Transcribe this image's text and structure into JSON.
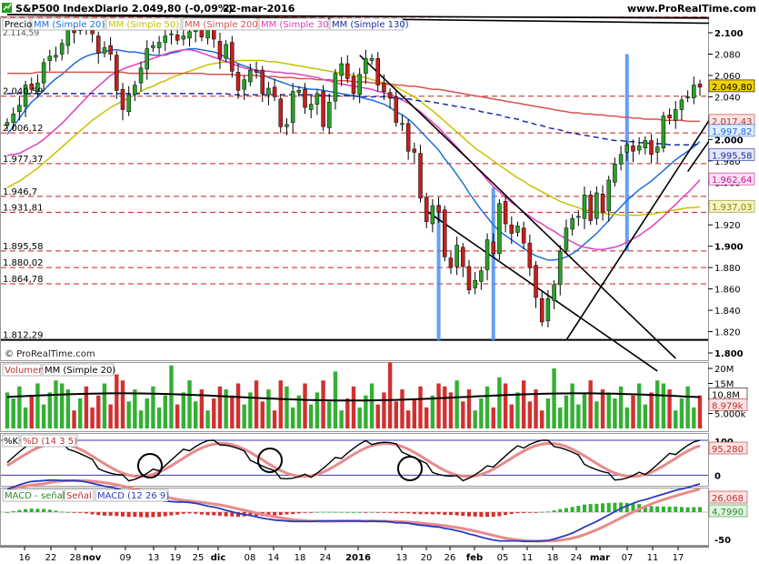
{
  "header": {
    "instrument": "S&P500 Index",
    "period": "Diario",
    "quote": "2.049,80 (-0,09%)",
    "date": "22-mar-2016",
    "site": "www.ProRealTime.com",
    "copyright": "© ProRealTime.com"
  },
  "price_legend": {
    "label": "Precio",
    "items": [
      {
        "label": "MM (Simple 20)",
        "color": "#1e6fd9"
      },
      {
        "label": "MM (Simple 50)",
        "color": "#c8c200"
      },
      {
        "label": "MM (Simple 200)",
        "color": "#d9534f"
      },
      {
        "label": "MM (Simple 30)",
        "color": "#e040c0"
      },
      {
        "label": "MM (Simple 130)",
        "color": "#1d2ea8"
      }
    ]
  },
  "price_levels_left": [
    "2.040,59",
    "2.006,12",
    "1.977,37",
    "1.946,7",
    "1.931,81",
    "1.895,58",
    "1.880,02",
    "1.864,78",
    "1.812,29"
  ],
  "top_cut_label": "2.114,59",
  "price_axis_ticks": [
    "2.100",
    "2.080",
    "2.060",
    "2.040",
    "2.020",
    "2.000",
    "1.980",
    "1.960",
    "1.940",
    "1.920",
    "1.900",
    "1.880",
    "1.860",
    "1.840",
    "1.820",
    "1.800"
  ],
  "price_badges": [
    {
      "text": "2.049,80",
      "bg": "#f2d200",
      "fg": "#000"
    },
    {
      "text": "2.017,43",
      "bg": "#fbe3e3",
      "fg": "#c03030"
    },
    {
      "text": "1.997,82",
      "bg": "#e2ecfb",
      "fg": "#1e6fd9"
    },
    {
      "text": "1.995,58",
      "bg": "#e4e6f7",
      "fg": "#1d2ea8"
    },
    {
      "text": "1.962,64",
      "bg": "#f9e0f3",
      "fg": "#c0209a"
    },
    {
      "text": "1.937,03",
      "bg": "#f6f5c8",
      "fg": "#8a8600"
    }
  ],
  "volume": {
    "label": "Volumen",
    "ma_label": "MM (Simple 20)",
    "axis_ticks": [
      "20M",
      "15M",
      "10M",
      "5.000k"
    ],
    "badges": [
      {
        "text": "10,8M",
        "bg": "#ffffff",
        "fg": "#000"
      },
      {
        "text": "8.979k",
        "bg": "#fbe3e3",
        "fg": "#c03030"
      }
    ]
  },
  "stochastic": {
    "label_k": "%K",
    "label_d": "%D (14 3 5)",
    "axis_ticks": [
      "100",
      "0"
    ],
    "badge": {
      "text": "95,280",
      "bg": "#fbe3e3",
      "fg": "#c03030"
    }
  },
  "macd": {
    "label_hist": "MACD - señal",
    "label_signal": "Señal",
    "label_macd": "MACD (12 26 9)",
    "axis_ticks": [
      "-50"
    ],
    "badges": [
      {
        "text": "26,068",
        "bg": "#fbe3e3",
        "fg": "#c03030"
      },
      {
        "text": "4,7990",
        "bg": "#e3f4e3",
        "fg": "#2a8a2a"
      }
    ]
  },
  "x_axis": {
    "labels": [
      {
        "text": "16",
        "bold": false
      },
      {
        "text": "22",
        "bold": false
      },
      {
        "text": "28",
        "bold": false
      },
      {
        "text": "nov",
        "bold": true
      },
      {
        "text": "09",
        "bold": false
      },
      {
        "text": "13",
        "bold": false
      },
      {
        "text": "19",
        "bold": false
      },
      {
        "text": "25",
        "bold": false
      },
      {
        "text": "dic",
        "bold": true
      },
      {
        "text": "08",
        "bold": false
      },
      {
        "text": "14",
        "bold": false
      },
      {
        "text": "18",
        "bold": false
      },
      {
        "text": "24",
        "bold": false
      },
      {
        "text": "2016",
        "bold": true
      },
      {
        "text": "13",
        "bold": false
      },
      {
        "text": "20",
        "bold": false
      },
      {
        "text": "26",
        "bold": false
      },
      {
        "text": "feb",
        "bold": true
      },
      {
        "text": "05",
        "bold": false
      },
      {
        "text": "11",
        "bold": false
      },
      {
        "text": "18",
        "bold": false
      },
      {
        "text": "24",
        "bold": false
      },
      {
        "text": "mar",
        "bold": true
      },
      {
        "text": "07",
        "bold": false
      },
      {
        "text": "11",
        "bold": false
      },
      {
        "text": "17",
        "bold": false
      }
    ]
  },
  "chart_data": {
    "type": "candlestick",
    "title": "S&P500 Index Diario",
    "ylim": [
      1800,
      2120
    ],
    "closes": [
      2016,
      2024,
      2032,
      2051,
      2047,
      2053,
      2072,
      2078,
      2079,
      2090,
      2104,
      2100,
      2109,
      2104,
      2099,
      2081,
      2086,
      2080,
      2046,
      2028,
      2042,
      2051,
      2067,
      2085,
      2088,
      2091,
      2097,
      2099,
      2093,
      2097,
      2101,
      2103,
      2096,
      2105,
      2094,
      2076,
      2089,
      2064,
      2046,
      2056,
      2065,
      2063,
      2043,
      2048,
      2040,
      2012,
      2014,
      2045,
      2046,
      2030,
      2033,
      2043,
      2012,
      2035,
      2062,
      2071,
      2057,
      2043,
      2061,
      2076,
      2076,
      2051,
      2045,
      2039,
      2016,
      2015,
      1989,
      1988,
      1945,
      1923,
      1938,
      1932,
      1890,
      1880,
      1901,
      1881,
      1859,
      1868,
      1877,
      1906,
      1893,
      1940,
      1921,
      1912,
      1919,
      1903,
      1880,
      1852,
      1829,
      1851,
      1864,
      1895,
      1917,
      1926,
      1928,
      1948,
      1924,
      1950,
      1932,
      1962,
      1977,
      1986,
      1995,
      1989,
      1994,
      1999,
      1986,
      1993,
      2022,
      2020,
      2028,
      2037,
      2040,
      2051,
      2049
    ],
    "series": [
      {
        "name": "MM (Simple 20)",
        "values": [
          2005,
          2012,
          2020,
          2028,
          2035,
          2040,
          2046,
          2052,
          2057,
          2061,
          2066,
          2071,
          2075,
          2078,
          2080,
          2081,
          2082,
          2084,
          2084,
          2083,
          2082,
          2082,
          2081,
          2080,
          2079,
          2079,
          2079,
          2081,
          2082,
          2084,
          2085,
          2085,
          2084,
          2083,
          2082,
          2080,
          2077,
          2074,
          2071,
          2069,
          2067,
          2064,
          2061,
          2058,
          2056,
          2054,
          2052,
          2050,
          2049,
          2048,
          2047,
          2047,
          2046,
          2045,
          2044,
          2043,
          2042,
          2041,
          2040,
          2038,
          2037,
          2035,
          2033,
          2030,
          2026,
          2023,
          2019,
          2014,
          2008,
          2002,
          1996,
          1990,
          1982,
          1975,
          1967,
          1959,
          1950,
          1942,
          1934,
          1927,
          1920,
          1914,
          1910,
          1906,
          1902,
          1898,
          1894,
          1891,
          1889,
          1887,
          1887,
          1888,
          1890,
          1893,
          1897,
          1902,
          1907,
          1912,
          1918,
          1924,
          1931,
          1937,
          1943,
          1948,
          1953,
          1957,
          1961,
          1966,
          1971,
          1976,
          1981,
          1985,
          1989,
          1993,
          1998
        ]
      },
      {
        "name": "MM (Simple 50)",
        "values": [
          1955,
          1958,
          1961,
          1965,
          1969,
          1973,
          1978,
          1983,
          1988,
          1993,
          1998,
          2003,
          2008,
          2013,
          2018,
          2022,
          2026,
          2030,
          2033,
          2036,
          2039,
          2042,
          2045,
          2048,
          2050,
          2053,
          2055,
          2058,
          2060,
          2062,
          2064,
          2066,
          2068,
          2070,
          2071,
          2072,
          2073,
          2073,
          2074,
          2074,
          2074,
          2074,
          2074,
          2073,
          2073,
          2072,
          2071,
          2070,
          2069,
          2068,
          2067,
          2066,
          2065,
          2064,
          2063,
          2062,
          2061,
          2060,
          2059,
          2058,
          2056,
          2055,
          2053,
          2051,
          2049,
          2046,
          2043,
          2040,
          2036,
          2031,
          2027,
          2022,
          2017,
          2012,
          2007,
          2002,
          1997,
          1992,
          1988,
          1984,
          1980,
          1976,
          1972,
          1968,
          1964,
          1961,
          1957,
          1954,
          1951,
          1948,
          1945,
          1942,
          1940,
          1938,
          1936,
          1934,
          1933,
          1932,
          1931,
          1930,
          1930,
          1929,
          1929,
          1929,
          1929,
          1930,
          1930,
          1931,
          1932,
          1933,
          1934,
          1935,
          1936,
          1936,
          1937
        ]
      },
      {
        "name": "MM (Simple 200)",
        "values": [
          2062,
          2062,
          2062,
          2062,
          2062,
          2063,
          2063,
          2063,
          2063,
          2063,
          2063,
          2063,
          2063,
          2063,
          2063,
          2063,
          2063,
          2063,
          2063,
          2063,
          2062,
          2062,
          2062,
          2062,
          2062,
          2062,
          2062,
          2062,
          2062,
          2062,
          2062,
          2062,
          2062,
          2061,
          2061,
          2061,
          2061,
          2061,
          2060,
          2060,
          2060,
          2060,
          2059,
          2059,
          2059,
          2058,
          2058,
          2058,
          2057,
          2057,
          2057,
          2056,
          2056,
          2056,
          2055,
          2055,
          2055,
          2054,
          2054,
          2054,
          2053,
          2053,
          2052,
          2052,
          2051,
          2051,
          2050,
          2050,
          2049,
          2048,
          2047,
          2047,
          2046,
          2045,
          2044,
          2043,
          2042,
          2041,
          2040,
          2039,
          2038,
          2037,
          2036,
          2035,
          2034,
          2033,
          2032,
          2031,
          2030,
          2029,
          2028,
          2027,
          2026,
          2025,
          2025,
          2024,
          2024,
          2023,
          2023,
          2022,
          2022,
          2021,
          2021,
          2020,
          2020,
          2019,
          2019,
          2019,
          2018,
          2018,
          2018,
          2018,
          2017,
          2017,
          2017
        ]
      },
      {
        "name": "MM (Simple 30)",
        "values": [
          1985,
          1986,
          1987,
          1990,
          1993,
          1996,
          2000,
          2005,
          2010,
          2015,
          2021,
          2027,
          2033,
          2039,
          2045,
          2050,
          2055,
          2060,
          2063,
          2066,
          2068,
          2070,
          2072,
          2074,
          2076,
          2078,
          2080,
          2082,
          2083,
          2084,
          2084,
          2083,
          2081,
          2079,
          2077,
          2075,
          2073,
          2071,
          2069,
          2067,
          2066,
          2065,
          2064,
          2064,
          2063,
          2063,
          2062,
          2062,
          2061,
          2060,
          2059,
          2058,
          2056,
          2055,
          2053,
          2052,
          2051,
          2050,
          2049,
          2048,
          2047,
          2045,
          2044,
          2042,
          2040,
          2037,
          2034,
          2030,
          2026,
          2021,
          2016,
          2011,
          2005,
          1999,
          1993,
          1987,
          1981,
          1975,
          1969,
          1962,
          1956,
          1951,
          1946,
          1941,
          1937,
          1932,
          1928,
          1924,
          1921,
          1917,
          1914,
          1910,
          1907,
          1904,
          1901,
          1899,
          1898,
          1897,
          1897,
          1898,
          1899,
          1901,
          1904,
          1907,
          1910,
          1914,
          1918,
          1923,
          1928,
          1934,
          1939,
          1945,
          1950,
          1956,
          1962
        ]
      },
      {
        "name": "MM (Simple 130)",
        "values": [
          2043,
          2043,
          2043,
          2043,
          2043,
          2043,
          2043,
          2043,
          2043,
          2043,
          2043,
          2043,
          2043,
          2043,
          2043,
          2043,
          2043,
          2043,
          2043,
          2043,
          2043,
          2043,
          2043,
          2043,
          2043,
          2043,
          2043,
          2043,
          2043,
          2043,
          2043,
          2043,
          2043,
          2043,
          2043,
          2043,
          2043,
          2042,
          2042,
          2042,
          2042,
          2042,
          2042,
          2042,
          2042,
          2042,
          2042,
          2042,
          2042,
          2042,
          2042,
          2042,
          2041,
          2041,
          2041,
          2041,
          2041,
          2041,
          2040,
          2040,
          2040,
          2040,
          2040,
          2039,
          2039,
          2038,
          2038,
          2037,
          2036,
          2036,
          2035,
          2034,
          2033,
          2032,
          2031,
          2030,
          2029,
          2028,
          2026,
          2025,
          2024,
          2023,
          2021,
          2020,
          2019,
          2017,
          2016,
          2014,
          2013,
          2011,
          2010,
          2009,
          2007,
          2006,
          2005,
          2004,
          2003,
          2002,
          2001,
          2000,
          1999,
          1999,
          1998,
          1998,
          1997,
          1997,
          1996,
          1996,
          1996,
          1995,
          1995,
          1995,
          1995,
          1995,
          1996
        ]
      }
    ]
  }
}
